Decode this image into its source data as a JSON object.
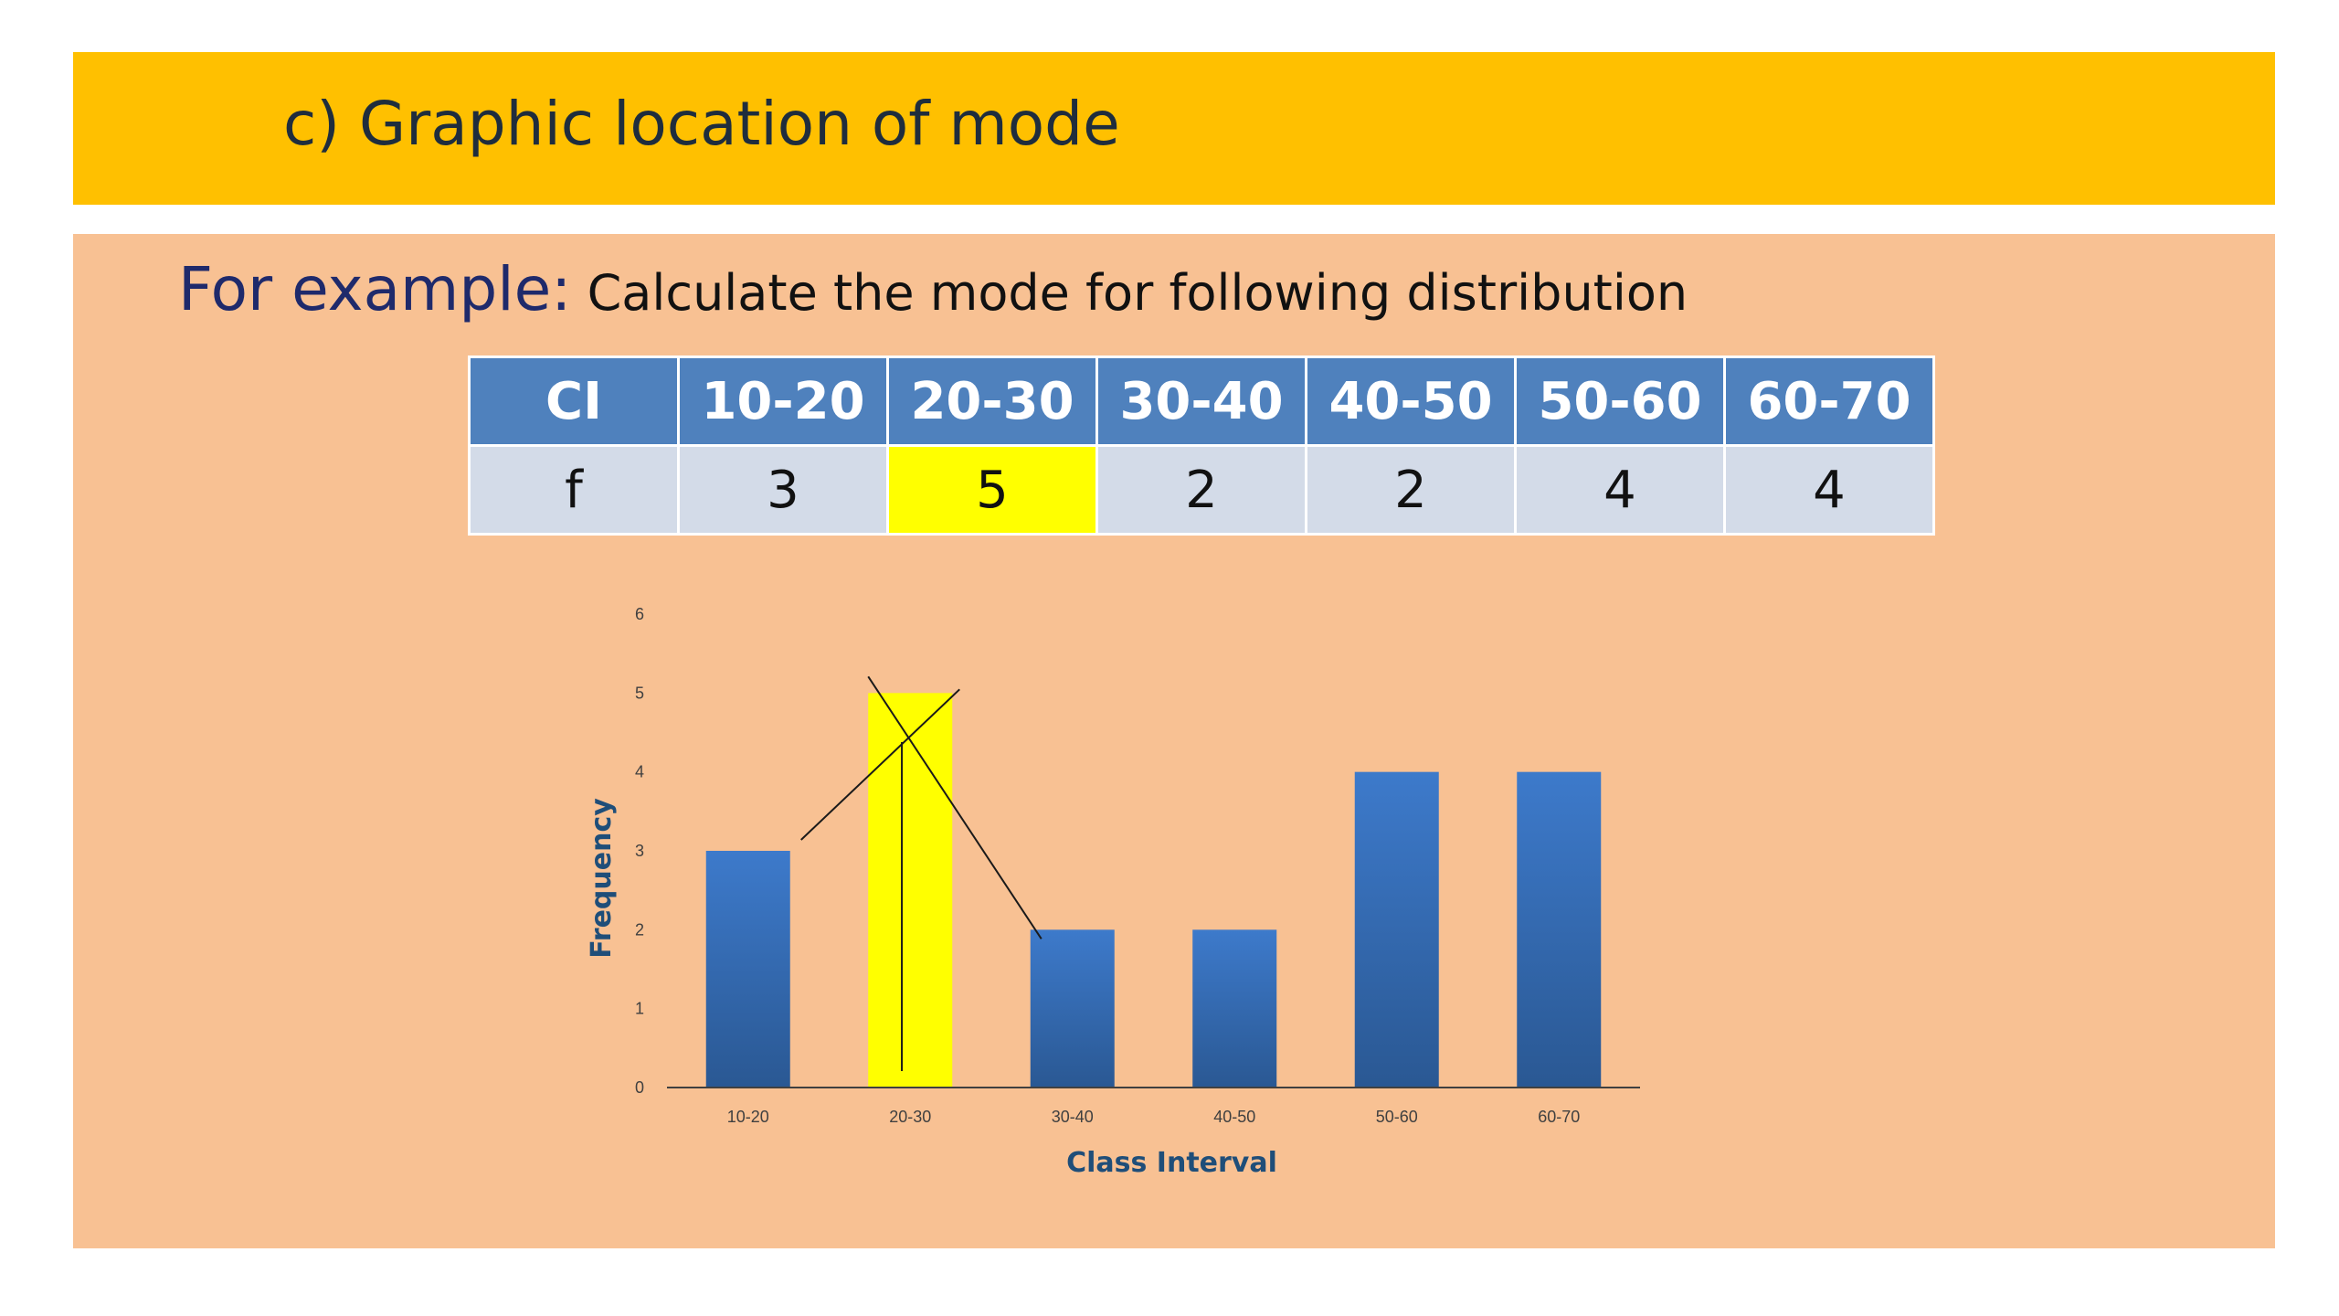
{
  "slide": {
    "title": "c) Graphic location of mode",
    "example_lead": "For example:",
    "example_text": " Calculate the mode for following distribution"
  },
  "table": {
    "header_label": "CI",
    "row_label": "f",
    "columns": [
      "10-20",
      "20-30",
      "30-40",
      "40-50",
      "50-60",
      "60-70"
    ],
    "values": [
      "3",
      "5",
      "2",
      "2",
      "4",
      "4"
    ],
    "highlight_index": 1
  },
  "chart_data": {
    "type": "bar",
    "categories": [
      "10-20",
      "20-30",
      "30-40",
      "40-50",
      "50-60",
      "60-70"
    ],
    "values": [
      3,
      5,
      2,
      2,
      4,
      4
    ],
    "xlabel": "Class Interval",
    "ylabel": "Frequency",
    "ylim": [
      0,
      6
    ],
    "yticks": [
      0,
      1,
      2,
      3,
      4,
      5,
      6
    ],
    "grid": false,
    "bar_color": "#3a73c0",
    "highlight_color": "#ffff00",
    "highlight_category": "20-30"
  }
}
